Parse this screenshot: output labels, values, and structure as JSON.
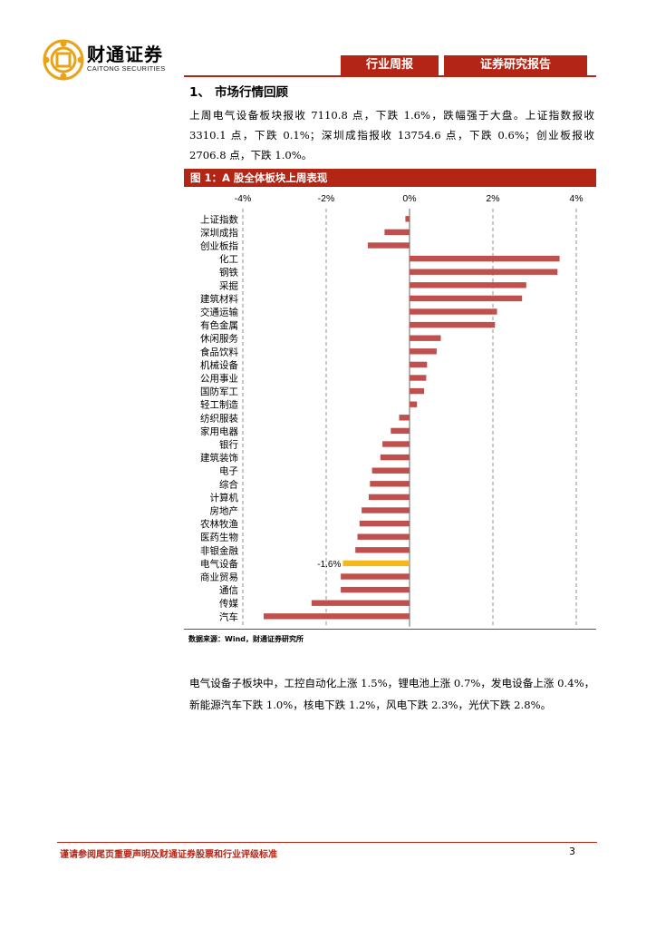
{
  "header": {
    "brand_cn": "财通证券",
    "brand_en": "CAITONG SECURITIES",
    "tab_weekly": "行业周报",
    "tab_research": "证券研究报告",
    "colors": {
      "accent": "#b32515",
      "logo": "#e8a317"
    }
  },
  "section": {
    "number": "1、",
    "title": "市场行情回顾"
  },
  "paragraph1": "上周电气设备板块报收 7110.8 点，下跌 1.6%，跌幅强于大盘。上证指数报收 3310.1 点，下跌 0.1%；深圳成指报收 13754.6 点，下跌 0.6%；创业板报收 2706.8 点，下跌 1.0%。",
  "figure": {
    "title": "图 1：A 股全体板块上周表现",
    "source": "数据来源：Wind，财通证券研究所"
  },
  "chart_data": {
    "type": "bar",
    "orientation": "horizontal",
    "title": "图 1：A 股全体板块上周表现",
    "xlim": [
      -4,
      4
    ],
    "x_ticks": [
      "-4%",
      "-2%",
      "0%",
      "2%",
      "4%"
    ],
    "x_tick_values": [
      -4,
      -2,
      0,
      2,
      4
    ],
    "grid": "dashed vertical",
    "categories": [
      "上证指数",
      "深圳成指",
      "创业板指",
      "化工",
      "钢铁",
      "采掘",
      "建筑材料",
      "交通运输",
      "有色金属",
      "休闲服务",
      "食品饮料",
      "机械设备",
      "公用事业",
      "国防军工",
      "轻工制造",
      "纺织服装",
      "家用电器",
      "银行",
      "建筑装饰",
      "电子",
      "综合",
      "计算机",
      "房地产",
      "农林牧渔",
      "医药生物",
      "非银金融",
      "电气设备",
      "商业贸易",
      "通信",
      "传媒",
      "汽车"
    ],
    "values": [
      -0.1,
      -0.6,
      -1.0,
      3.6,
      3.55,
      2.8,
      2.7,
      2.1,
      2.05,
      0.75,
      0.65,
      0.42,
      0.4,
      0.35,
      0.18,
      -0.25,
      -0.45,
      -0.65,
      -0.7,
      -0.9,
      -0.95,
      -0.98,
      -1.15,
      -1.2,
      -1.25,
      -1.3,
      -1.6,
      -1.65,
      -1.65,
      -2.35,
      -3.5
    ],
    "highlight_category": "电气设备",
    "highlight_label": "-1.6%",
    "colors": {
      "bar": "#c0504d",
      "highlight": "#f4b81c"
    }
  },
  "paragraph2": "电气设备子板块中，工控自动化上涨 1.5%，锂电池上涨 0.7%，发电设备上涨 0.4%，新能源汽车下跌 1.0%，核电下跌 1.2%，风电下跌 2.3%，光伏下跌 2.8%。",
  "footer": {
    "disclaimer": "谨请参阅尾页重要声明及财通证券股票和行业评级标准",
    "page_number": "3"
  }
}
